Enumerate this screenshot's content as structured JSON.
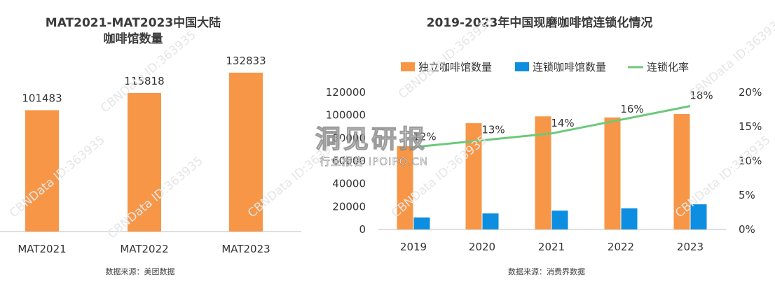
{
  "left_chart": {
    "title_line1": "MAT2021-MAT2023中国大陆",
    "title_line2": "咖啡馆数量",
    "source": "数据来源：美团数据"
  },
  "right_chart": {
    "title": "2019-2023年中国现磨咖啡馆连锁化情况",
    "source": "数据来源：消费界数据"
  },
  "watermark": {
    "brand": "洞见研报",
    "sub": "行业报告 IPOIPO.CN",
    "cbn": "CBNData ID:363935"
  },
  "colors": {
    "orange": "#f79646",
    "blue": "#0e8ee0",
    "green": "#6cc97b",
    "axis": "#bfbfbf"
  },
  "chart_data": [
    {
      "type": "bar",
      "title": "MAT2021-MAT2023中国大陆咖啡馆数量",
      "categories": [
        "MAT2021",
        "MAT2022",
        "MAT2023"
      ],
      "values": [
        101483,
        115818,
        132833
      ],
      "data_labels": [
        "101483",
        "115818",
        "132833"
      ],
      "ylim": [
        0,
        155000
      ],
      "grid": false,
      "legend": "none"
    },
    {
      "type": "bar",
      "title": "2019-2023年中国现磨咖啡馆连锁化情况",
      "categories": [
        "2019",
        "2020",
        "2021",
        "2022",
        "2023"
      ],
      "series": [
        {
          "name": "独立咖啡馆数量",
          "type": "bar",
          "axis": "left",
          "values": [
            73000,
            93000,
            99000,
            98000,
            101000
          ]
        },
        {
          "name": "连锁咖啡馆数量",
          "type": "bar",
          "axis": "left",
          "values": [
            10500,
            14000,
            16500,
            18500,
            22000
          ]
        },
        {
          "name": "连锁化率",
          "type": "line",
          "axis": "right",
          "values": [
            0.12,
            0.13,
            0.14,
            0.16,
            0.18
          ],
          "labels": [
            "12%",
            "13%",
            "14%",
            "16%",
            "18%"
          ]
        }
      ],
      "y_left": {
        "ticks": [
          "0",
          "20000",
          "40000",
          "60000",
          "80000",
          "100000",
          "120000"
        ],
        "range": [
          0,
          120000
        ]
      },
      "y_right": {
        "ticks": [
          "0%",
          "5%",
          "10%",
          "15%",
          "20%"
        ],
        "range": [
          0,
          0.2
        ]
      },
      "legend": "top",
      "grid": false
    }
  ]
}
